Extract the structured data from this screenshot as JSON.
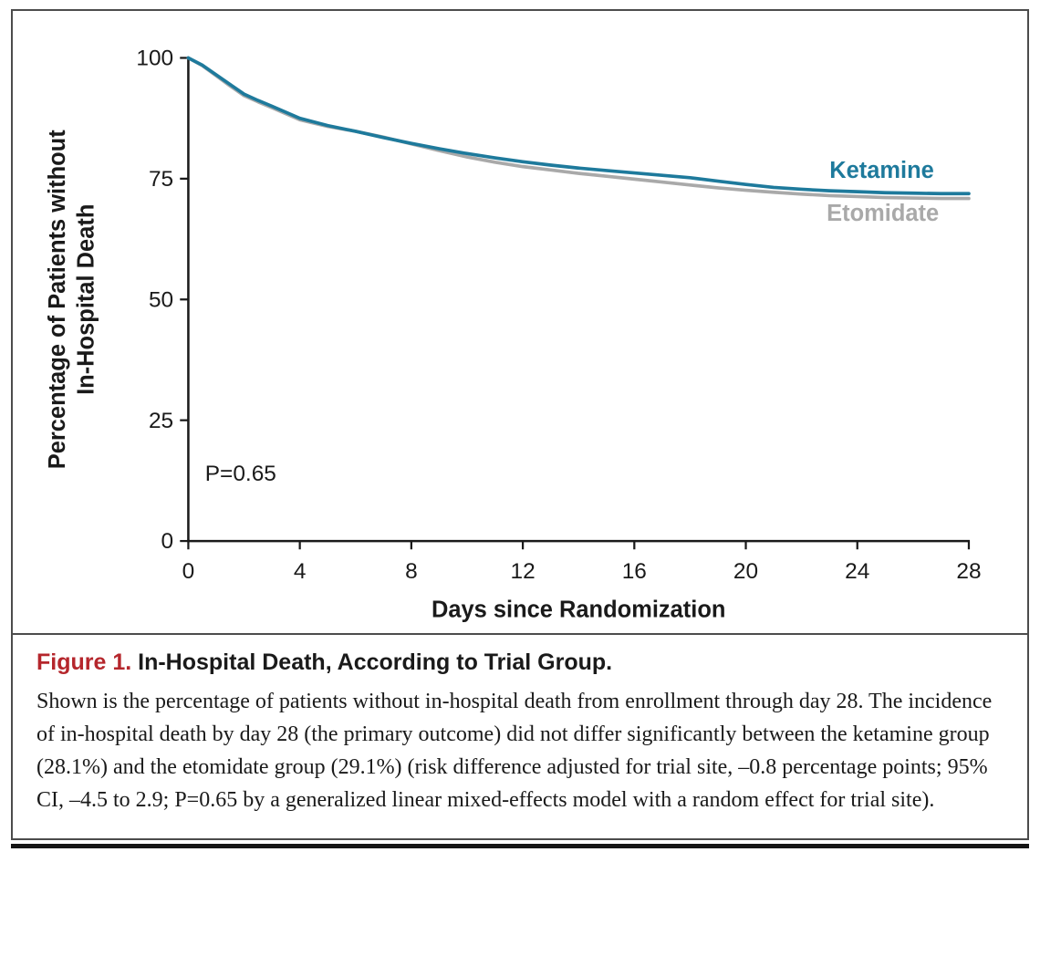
{
  "figure": {
    "label": "Figure 1.",
    "label_color": "#b5262c",
    "title": "In-Hospital Death, According to Trial Group.",
    "caption": "Shown is the percentage of patients without in-hospital death from enrollment through day 28. The incidence of in-hospital death by day 28 (the primary outcome) did not differ significantly between the ketamine group (28.1%) and the etomidate group (29.1%) (risk difference adjusted for trial site, –0.8 percentage points; 95% CI, –4.5 to 2.9; P=0.65 by a generalized linear mixed-effects model with a random effect for trial site)."
  },
  "chart_data": {
    "type": "line",
    "title": "",
    "xlabel": "Days since Randomization",
    "ylabel": "Percentage of Patients without In-Hospital Death",
    "ylabel_lines": [
      "Percentage of Patients without",
      "In-Hospital Death"
    ],
    "xlim": [
      0,
      28
    ],
    "ylim": [
      0,
      100
    ],
    "xticks": [
      0,
      4,
      8,
      12,
      16,
      20,
      24,
      28
    ],
    "yticks": [
      0,
      25,
      50,
      75,
      100
    ],
    "grid": false,
    "annotation": {
      "text": "P=0.65",
      "x": 0.6,
      "y": 12.5
    },
    "axis_color": "#1a1a1a",
    "series": [
      {
        "name": "Ketamine",
        "color": "#1e7a9c",
        "label_x": 23.0,
        "label_y": 75.2,
        "x": [
          0,
          0.5,
          1,
          1.5,
          2,
          2.5,
          3,
          4,
          5,
          6,
          7,
          8,
          9,
          10,
          11,
          12,
          13,
          14,
          15,
          16,
          17,
          18,
          19,
          20,
          21,
          22,
          23,
          24,
          25,
          26,
          27,
          28
        ],
        "y": [
          100,
          98.5,
          96.5,
          94.5,
          92.5,
          91.2,
          90,
          87.5,
          86,
          84.8,
          83.5,
          82.3,
          81.2,
          80.2,
          79.3,
          78.5,
          77.8,
          77.2,
          76.7,
          76.2,
          75.7,
          75.2,
          74.5,
          73.8,
          73.2,
          72.8,
          72.5,
          72.3,
          72.1,
          72,
          71.9,
          71.9
        ]
      },
      {
        "name": "Etomidate",
        "color": "#a9a9a9",
        "label_x": 22.9,
        "label_y": 66.3,
        "x": [
          0,
          0.5,
          1,
          1.5,
          2,
          2.5,
          3,
          4,
          5,
          6,
          7,
          8,
          9,
          10,
          11,
          12,
          13,
          14,
          15,
          16,
          17,
          18,
          19,
          20,
          21,
          22,
          23,
          24,
          25,
          26,
          27,
          28
        ],
        "y": [
          100,
          98.4,
          96.3,
          94.2,
          92.2,
          90.9,
          89.7,
          87.2,
          85.8,
          84.8,
          83.6,
          82.2,
          80.8,
          79.5,
          78.4,
          77.5,
          76.8,
          76.1,
          75.5,
          74.9,
          74.3,
          73.7,
          73.1,
          72.6,
          72.2,
          71.8,
          71.5,
          71.3,
          71.1,
          71,
          70.9,
          70.9
        ]
      }
    ]
  }
}
